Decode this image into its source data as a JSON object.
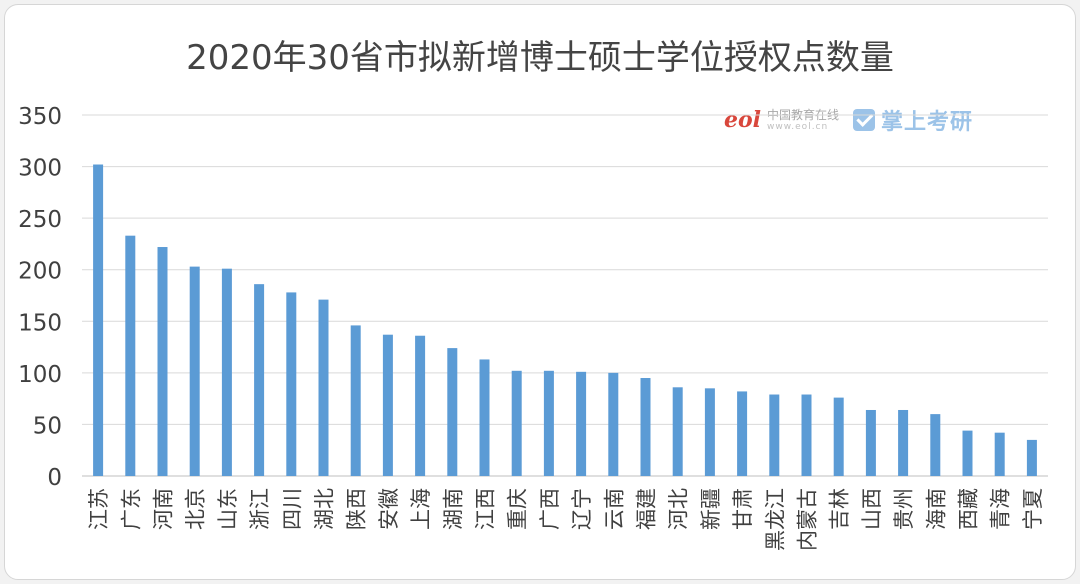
{
  "chart_data": {
    "type": "bar",
    "title": "2020年30省市拟新增博士硕士学位授权点数量",
    "xlabel": "",
    "ylabel": "",
    "ylim": [
      0,
      350
    ],
    "yticks": [
      0,
      50,
      100,
      150,
      200,
      250,
      300,
      350
    ],
    "grid": true,
    "legend": "none",
    "bar_color": "#5b9bd5",
    "categories": [
      "江苏",
      "广东",
      "河南",
      "北京",
      "山东",
      "浙江",
      "四川",
      "湖北",
      "陕西",
      "安徽",
      "上海",
      "湖南",
      "江西",
      "重庆",
      "广西",
      "辽宁",
      "云南",
      "福建",
      "河北",
      "新疆",
      "甘肃",
      "黑龙江",
      "内蒙古",
      "吉林",
      "山西",
      "贵州",
      "海南",
      "西藏",
      "青海",
      "宁夏"
    ],
    "values": [
      302,
      233,
      222,
      203,
      201,
      186,
      178,
      171,
      146,
      137,
      136,
      124,
      113,
      102,
      102,
      101,
      100,
      95,
      86,
      85,
      82,
      79,
      79,
      76,
      64,
      64,
      60,
      44,
      42,
      35
    ]
  },
  "watermark": {
    "eol_logo": "eol",
    "eol_name": "中国教育在线",
    "eol_url": "www.eol.cn",
    "app_icon": "check-badge-icon",
    "app_name": "掌上考研"
  }
}
